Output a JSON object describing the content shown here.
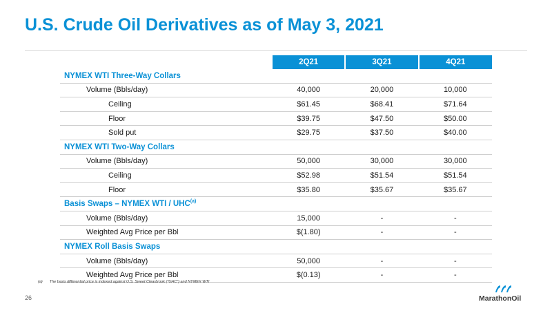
{
  "slide": {
    "title": "U.S. Crude Oil Derivatives as of May 3, 2021",
    "page_number": "26",
    "footnote_marker": "(a)",
    "footnote_text": "The basis differential price is indexed against U.S. Sweet Clearbrook (\"UHC\") and NYMEX WTI",
    "logo_text": "MarathonOil",
    "accent_color": "#0a91d6"
  },
  "table": {
    "columns": [
      "2Q21",
      "3Q21",
      "4Q21"
    ],
    "sections": [
      {
        "name": "NYMEX WTI Three-Way Collars",
        "rows": [
          {
            "label": "Volume (Bbls/day)",
            "values": [
              "40,000",
              "20,000",
              "10,000"
            ]
          },
          {
            "label": "Ceiling",
            "values": [
              "$61.45",
              "$68.41",
              "$71.64"
            ]
          },
          {
            "label": "Floor",
            "values": [
              "$39.75",
              "$47.50",
              "$50.00"
            ]
          },
          {
            "label": "Sold put",
            "values": [
              "$29.75",
              "$37.50",
              "$40.00"
            ]
          }
        ]
      },
      {
        "name": "NYMEX WTI Two-Way Collars",
        "rows": [
          {
            "label": "Volume (Bbls/day)",
            "values": [
              "50,000",
              "30,000",
              "30,000"
            ]
          },
          {
            "label": "Ceiling",
            "values": [
              "$52.98",
              "$51.54",
              "$51.54"
            ]
          },
          {
            "label": "Floor",
            "values": [
              "$35.80",
              "$35.67",
              "$35.67"
            ]
          }
        ]
      },
      {
        "name": "Basis Swaps – NYMEX WTI / UHC",
        "name_sup": "(a)",
        "rows": [
          {
            "label": "Volume (Bbls/day)",
            "values": [
              "15,000",
              "-",
              "-"
            ]
          },
          {
            "label": "Weighted Avg Price per Bbl",
            "values": [
              "$(1.80)",
              "-",
              "-"
            ]
          }
        ]
      },
      {
        "name": "NYMEX Roll Basis Swaps",
        "rows": [
          {
            "label": "Volume (Bbls/day)",
            "values": [
              "50,000",
              "-",
              "-"
            ]
          },
          {
            "label": "Weighted Avg Price per Bbl",
            "values": [
              "$(0.13)",
              "-",
              "-"
            ]
          }
        ]
      }
    ]
  }
}
